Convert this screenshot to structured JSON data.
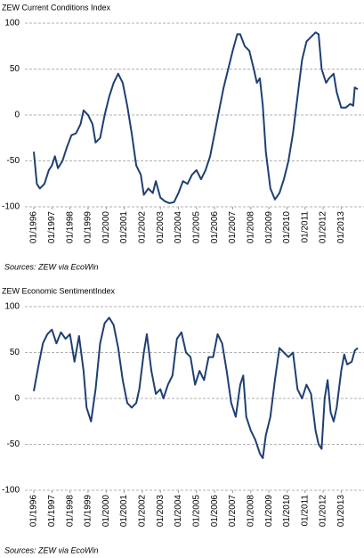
{
  "chart_data": [
    {
      "type": "line",
      "title": "ZEW Current Conditions Index",
      "source": "Sources: ZEW via EcoWin",
      "x": [
        "1996-01",
        "1996-03",
        "1996-05",
        "1996-08",
        "1996-11",
        "1997-01",
        "1997-03",
        "1997-05",
        "1997-08",
        "1997-11",
        "1998-02",
        "1998-05",
        "1998-08",
        "1998-10",
        "1999-01",
        "1999-04",
        "1999-06",
        "1999-09",
        "1999-12",
        "2000-03",
        "2000-06",
        "2000-09",
        "2000-12",
        "2001-03",
        "2001-06",
        "2001-09",
        "2001-12",
        "2002-02",
        "2002-05",
        "2002-08",
        "2002-10",
        "2003-01",
        "2003-04",
        "2003-07",
        "2003-10",
        "2004-01",
        "2004-04",
        "2004-07",
        "2004-10",
        "2005-01",
        "2005-04",
        "2005-07",
        "2005-10",
        "2006-01",
        "2006-04",
        "2006-07",
        "2006-10",
        "2007-01",
        "2007-04",
        "2007-06",
        "2007-09",
        "2007-12",
        "2008-03",
        "2008-05",
        "2008-07",
        "2008-09",
        "2008-11",
        "2009-02",
        "2009-05",
        "2009-08",
        "2009-11",
        "2010-02",
        "2010-05",
        "2010-08",
        "2010-11",
        "2011-02",
        "2011-05",
        "2011-08",
        "2011-10",
        "2011-12",
        "2012-03",
        "2012-05",
        "2012-08",
        "2012-10",
        "2013-01",
        "2013-04",
        "2013-07",
        "2013-09",
        "2013-10",
        "2013-12"
      ],
      "series": [
        {
          "color": "#1f3f73",
          "values": [
            -40,
            -75,
            -80,
            -75,
            -60,
            -55,
            -45,
            -58,
            -50,
            -35,
            -22,
            -20,
            -10,
            5,
            0,
            -10,
            -30,
            -25,
            0,
            20,
            35,
            45,
            35,
            10,
            -20,
            -55,
            -65,
            -87,
            -80,
            -85,
            -72,
            -90,
            -94,
            -96,
            -95,
            -85,
            -72,
            -75,
            -65,
            -60,
            -70,
            -60,
            -45,
            -20,
            5,
            30,
            50,
            70,
            88,
            88,
            75,
            70,
            50,
            35,
            40,
            10,
            -40,
            -80,
            -92,
            -85,
            -70,
            -50,
            -20,
            20,
            60,
            80,
            85,
            90,
            88,
            50,
            35,
            40,
            45,
            25,
            8,
            8,
            12,
            10,
            30,
            28
          ]
        }
      ],
      "xlim": [
        "1996-01",
        "2013-12"
      ],
      "xticks": [
        {
          "value": "1996-01",
          "label": "01/1996"
        },
        {
          "value": "1997-01",
          "label": "01/1997"
        },
        {
          "value": "1998-01",
          "label": "01/1998"
        },
        {
          "value": "1999-01",
          "label": "01/1999"
        },
        {
          "value": "2000-01",
          "label": "01/2000"
        },
        {
          "value": "2001-01",
          "label": "01/2001"
        },
        {
          "value": "2002-01",
          "label": "01/2002"
        },
        {
          "value": "2003-01",
          "label": "01/2003"
        },
        {
          "value": "2004-01",
          "label": "01/2004"
        },
        {
          "value": "2005-01",
          "label": "01/2005"
        },
        {
          "value": "2006-01",
          "label": "01/2006"
        },
        {
          "value": "2007-01",
          "label": "01/2007"
        },
        {
          "value": "2008-01",
          "label": "01/2008"
        },
        {
          "value": "2009-01",
          "label": "01/2009"
        },
        {
          "value": "2010-01",
          "label": "01/2010"
        },
        {
          "value": "2011-01",
          "label": "01/2011"
        },
        {
          "value": "2012-01",
          "label": "01/2012"
        },
        {
          "value": "2013-01",
          "label": "01/2013"
        }
      ],
      "ylim": [
        -100,
        100
      ],
      "yticks": [
        100,
        50,
        0,
        -50,
        -100
      ],
      "grid": true
    },
    {
      "type": "line",
      "title": "ZEW Economic SentimentIndex",
      "source": "Sources: ZEW via EcoWin",
      "x": [
        "1996-01",
        "1996-04",
        "1996-07",
        "1996-10",
        "1997-01",
        "1997-04",
        "1997-07",
        "1997-10",
        "1998-01",
        "1998-04",
        "1998-07",
        "1998-10",
        "1998-12",
        "1999-03",
        "1999-06",
        "1999-09",
        "1999-12",
        "2000-03",
        "2000-06",
        "2000-09",
        "2000-12",
        "2001-03",
        "2001-06",
        "2001-09",
        "2001-11",
        "2002-02",
        "2002-04",
        "2002-07",
        "2002-10",
        "2003-01",
        "2003-03",
        "2003-06",
        "2003-09",
        "2003-12",
        "2004-03",
        "2004-06",
        "2004-09",
        "2004-12",
        "2005-03",
        "2005-06",
        "2005-09",
        "2005-12",
        "2006-03",
        "2006-06",
        "2006-09",
        "2006-12",
        "2007-03",
        "2007-06",
        "2007-08",
        "2007-10",
        "2008-01",
        "2008-04",
        "2008-07",
        "2008-09",
        "2008-11",
        "2009-02",
        "2009-05",
        "2009-08",
        "2009-11",
        "2010-02",
        "2010-05",
        "2010-08",
        "2010-11",
        "2011-02",
        "2011-05",
        "2011-08",
        "2011-10",
        "2011-12",
        "2012-02",
        "2012-04",
        "2012-06",
        "2012-08",
        "2012-10",
        "2013-01",
        "2013-03",
        "2013-05",
        "2013-08",
        "2013-10",
        "2013-12"
      ],
      "series": [
        {
          "color": "#1f3f73",
          "values": [
            8,
            35,
            60,
            70,
            75,
            60,
            72,
            65,
            70,
            40,
            68,
            30,
            -10,
            -25,
            10,
            60,
            82,
            88,
            80,
            55,
            20,
            -5,
            -10,
            -5,
            10,
            50,
            70,
            30,
            5,
            10,
            0,
            15,
            25,
            65,
            72,
            50,
            45,
            15,
            30,
            20,
            45,
            45,
            70,
            60,
            30,
            -5,
            -20,
            15,
            25,
            -20,
            -35,
            -45,
            -60,
            -65,
            -40,
            -20,
            20,
            55,
            50,
            45,
            50,
            10,
            0,
            15,
            5,
            -35,
            -50,
            -55,
            0,
            20,
            -15,
            -25,
            -10,
            30,
            48,
            37,
            40,
            52,
            55
          ]
        }
      ],
      "xlim": [
        "1996-01",
        "2013-12"
      ],
      "xticks": [
        {
          "value": "1996-01",
          "label": "01/1996"
        },
        {
          "value": "1997-01",
          "label": "01/1997"
        },
        {
          "value": "1998-01",
          "label": "01/1998"
        },
        {
          "value": "1999-01",
          "label": "01/1999"
        },
        {
          "value": "2000-01",
          "label": "01/2000"
        },
        {
          "value": "2001-01",
          "label": "01/2001"
        },
        {
          "value": "2002-01",
          "label": "01/2002"
        },
        {
          "value": "2003-01",
          "label": "01/2003"
        },
        {
          "value": "2004-01",
          "label": "01/2004"
        },
        {
          "value": "2005-01",
          "label": "01/2005"
        },
        {
          "value": "2006-01",
          "label": "01/2006"
        },
        {
          "value": "2007-01",
          "label": "01/2007"
        },
        {
          "value": "2008-01",
          "label": "01/2008"
        },
        {
          "value": "2009-01",
          "label": "01/2009"
        },
        {
          "value": "2010-01",
          "label": "01/2010"
        },
        {
          "value": "2011-01",
          "label": "01/2011"
        },
        {
          "value": "2012-01",
          "label": "01/2012"
        },
        {
          "value": "2013-01",
          "label": "01/2013"
        }
      ],
      "ylim": [
        -100,
        100
      ],
      "yticks": [
        100,
        50,
        0,
        -50,
        -100
      ],
      "grid": true
    }
  ]
}
